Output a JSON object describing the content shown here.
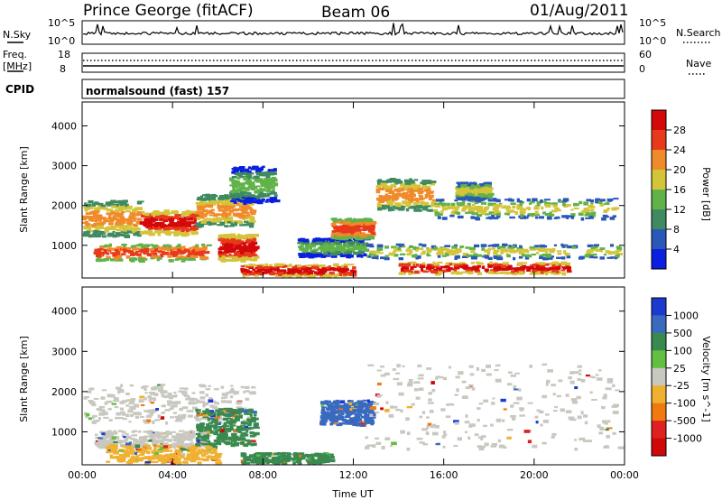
{
  "header": {
    "station": "Prince George (fitACF)",
    "beam": "Beam 06",
    "date": "01/Aug/2011"
  },
  "status_panels": {
    "nsky": {
      "label": "N.Sky",
      "tick_top": "10^5",
      "tick_bottom": "10^0"
    },
    "nsearch": {
      "label": "N.Search",
      "tick_top": "10^5",
      "tick_bottom": "10^0"
    },
    "freq": {
      "label_line1": "Freq.",
      "label_line2": "[MHz]",
      "tick_top": "18",
      "tick_bottom": "8"
    },
    "nave": {
      "label": "Nave",
      "tick_top": "60",
      "tick_bottom": "0"
    },
    "cpid": {
      "label": "CPID",
      "program": "normalsound (fast) 157"
    }
  },
  "chart_data": [
    {
      "type": "heatmap",
      "title": "Power",
      "ylabel": "Slant Range [km]",
      "xlabel": "",
      "x_range_hours": [
        0,
        24
      ],
      "ylim": [
        180,
        4600
      ],
      "x_tick_labels": [
        "00:00",
        "04:00",
        "08:00",
        "12:00",
        "16:00",
        "20:00",
        "00:00"
      ],
      "y_ticks": [
        1000,
        2000,
        3000,
        4000
      ],
      "colorbar": {
        "label": "Power [dB]",
        "ticks": [
          4,
          8,
          12,
          16,
          20,
          24,
          28
        ],
        "range": [
          0,
          32
        ],
        "colors": [
          "#0a1fe0",
          "#2b58b8",
          "#3f8a60",
          "#62b24a",
          "#d4c43a",
          "#f08a2a",
          "#e83a1a",
          "#d40808"
        ]
      },
      "bands_range_km": [
        {
          "t": [
            0.0,
            2.5
          ],
          "r": [
            1250,
            2150
          ],
          "level": 20
        },
        {
          "t": [
            2.5,
            5.0
          ],
          "r": [
            1300,
            1900
          ],
          "level": 26
        },
        {
          "t": [
            5.0,
            7.5
          ],
          "r": [
            1500,
            2300
          ],
          "level": 20
        },
        {
          "t": [
            6.5,
            8.5
          ],
          "r": [
            2100,
            3000
          ],
          "level": 12
        },
        {
          "t": [
            0.5,
            5.5
          ],
          "r": [
            650,
            1050
          ],
          "level": 22
        },
        {
          "t": [
            6.0,
            7.6
          ],
          "r": [
            650,
            1300
          ],
          "level": 26
        },
        {
          "t": [
            7.0,
            12.0
          ],
          "r": [
            250,
            550
          ],
          "level": 28
        },
        {
          "t": [
            9.5,
            12.5
          ],
          "r": [
            750,
            1200
          ],
          "level": 12
        },
        {
          "t": [
            11.0,
            12.8
          ],
          "r": [
            1200,
            1700
          ],
          "level": 24
        },
        {
          "t": [
            13.0,
            15.5
          ],
          "r": [
            1900,
            2700
          ],
          "level": 18
        },
        {
          "t": [
            15.5,
            23.5
          ],
          "r": [
            1700,
            2200
          ],
          "level": 14
        },
        {
          "t": [
            12.5,
            23.8
          ],
          "r": [
            700,
            1050
          ],
          "level": 14
        },
        {
          "t": [
            14.0,
            21.5
          ],
          "r": [
            320,
            600
          ],
          "level": 26
        },
        {
          "t": [
            16.5,
            18.0
          ],
          "r": [
            2200,
            2600
          ],
          "level": 14
        }
      ]
    },
    {
      "type": "heatmap",
      "title": "Velocity",
      "ylabel": "Slant Range [km]",
      "xlabel": "Time UT",
      "x_range_hours": [
        0,
        24
      ],
      "ylim": [
        180,
        4600
      ],
      "x_tick_labels": [
        "00:00",
        "04:00",
        "08:00",
        "12:00",
        "16:00",
        "20:00",
        "00:00"
      ],
      "y_ticks": [
        1000,
        2000,
        3000,
        4000
      ],
      "colorbar": {
        "label": "Velocity [m s^-1]",
        "ticks": [
          "1000",
          "500",
          "100",
          "25",
          "-25",
          "-100",
          "-500",
          "-1000"
        ],
        "colors": [
          "#1a3ad0",
          "#3a6ac0",
          "#3a8a50",
          "#62c040",
          "#c8c8c0",
          "#f0b030",
          "#f07a10",
          "#e02020",
          "#d00808"
        ]
      },
      "bands_range_km": [
        {
          "t": [
            0.0,
            7.5
          ],
          "r": [
            1250,
            2200
          ],
          "vel": "-25..25"
        },
        {
          "t": [
            0.5,
            5.5
          ],
          "r": [
            650,
            1050
          ],
          "vel": "-25..25"
        },
        {
          "t": [
            1.0,
            6.0
          ],
          "r": [
            250,
            700
          ],
          "vel": "-100"
        },
        {
          "t": [
            5.0,
            7.6
          ],
          "r": [
            700,
            1600
          ],
          "vel": "100"
        },
        {
          "t": [
            7.0,
            11.0
          ],
          "r": [
            200,
            500
          ],
          "vel": "100"
        },
        {
          "t": [
            10.5,
            12.8
          ],
          "r": [
            1200,
            1800
          ],
          "vel": "500"
        },
        {
          "t": [
            12.5,
            24.0
          ],
          "r": [
            600,
            2700
          ],
          "vel": "-25..25"
        }
      ]
    }
  ]
}
